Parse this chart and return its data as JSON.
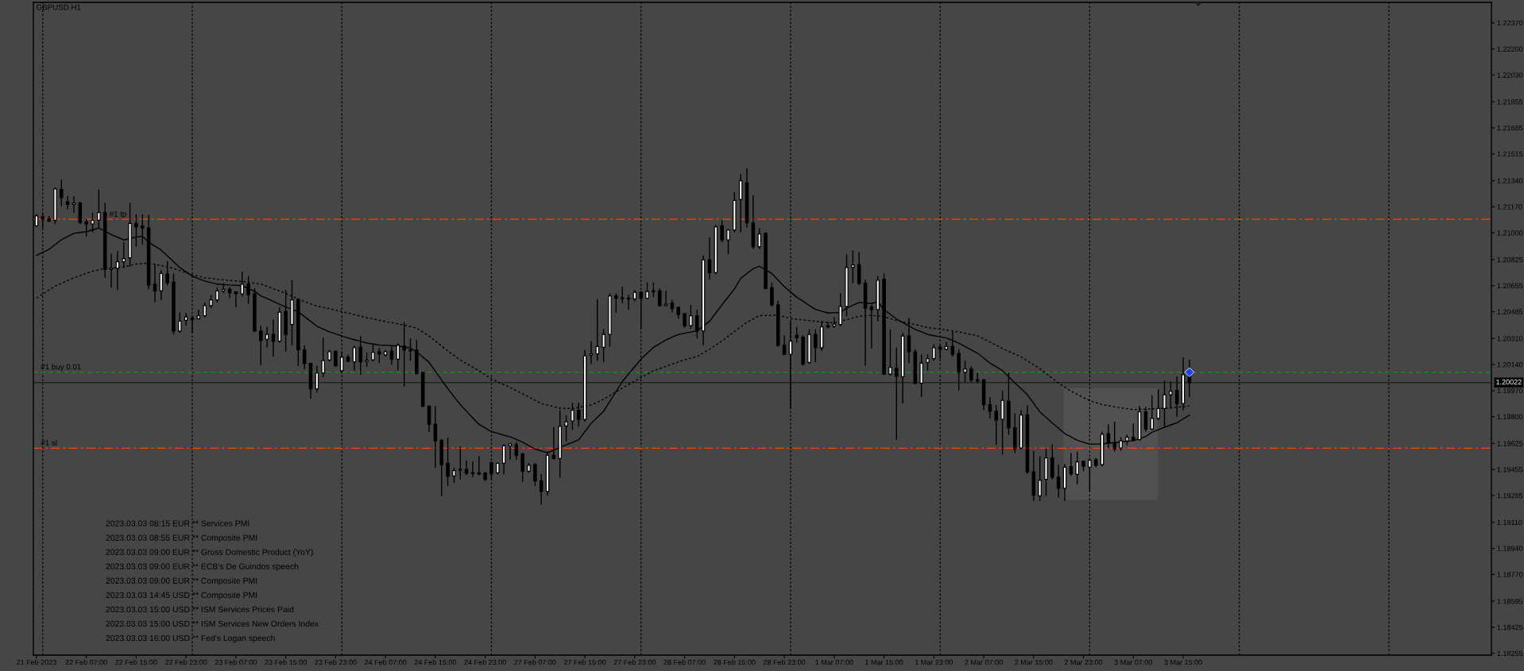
{
  "chart_data": {
    "type": "candlestick",
    "title": "GBPUSD.H1",
    "categories": [
      "21 Feb 2023",
      null,
      null,
      null,
      null,
      null,
      null,
      null,
      "22 Feb 07:00",
      null,
      null,
      null,
      null,
      null,
      null,
      null,
      "22 Feb 15:00",
      null,
      null,
      null,
      null,
      null,
      null,
      null,
      "22 Feb 23:00",
      null,
      null,
      null,
      null,
      null,
      null,
      null,
      "23 Feb 07:00",
      null,
      null,
      null,
      null,
      null,
      null,
      null,
      "23 Feb 15:00",
      null,
      null,
      null,
      null,
      null,
      null,
      null,
      "23 Feb 23:00",
      null,
      null,
      null,
      null,
      null,
      null,
      null,
      "24 Feb 07:00",
      null,
      null,
      null,
      null,
      null,
      null,
      null,
      "24 Feb 15:00",
      null,
      null,
      null,
      null,
      null,
      null,
      null,
      "24 Feb 23:00",
      null,
      null,
      null,
      null,
      null,
      null,
      null,
      "27 Feb 07:00",
      null,
      null,
      null,
      null,
      null,
      null,
      null,
      "27 Feb 15:00",
      null,
      null,
      null,
      null,
      null,
      null,
      null,
      "27 Feb 23:00",
      null,
      null,
      null,
      null,
      null,
      null,
      null,
      "28 Feb 07:00",
      null,
      null,
      null,
      null,
      null,
      null,
      null,
      "28 Feb 15:00",
      null,
      null,
      null,
      null,
      null,
      null,
      null,
      "28 Feb 23:00",
      null,
      null,
      null,
      null,
      null,
      null,
      null,
      "1 Mar 07:00",
      null,
      null,
      null,
      null,
      null,
      null,
      null,
      "1 Mar 15:00",
      null,
      null,
      null,
      null,
      null,
      null,
      null,
      "1 Mar 23:00",
      null,
      null,
      null,
      null,
      null,
      null,
      null,
      "2 Mar 07:00",
      null,
      null,
      null,
      null,
      null,
      null,
      null,
      "2 Mar 15:00",
      null,
      null,
      null,
      null,
      null,
      null,
      null,
      "2 Mar 23:00",
      null,
      null,
      null,
      null,
      null,
      null,
      null,
      "3 Mar 07:00",
      null,
      null,
      null,
      null,
      null,
      null,
      null,
      "3 Mar 15:00",
      null
    ],
    "ohlc": [
      [
        1.21046,
        1.21121,
        1.21039,
        1.2111
      ],
      [
        1.21104,
        1.21132,
        1.21031,
        1.21089
      ],
      [
        1.21089,
        1.2111,
        1.21067,
        1.21078
      ],
      [
        1.21082,
        1.21297,
        1.21057,
        1.21287
      ],
      [
        1.21282,
        1.21347,
        1.21175,
        1.21229
      ],
      [
        1.21201,
        1.21239,
        1.21153,
        1.21186
      ],
      [
        1.21186,
        1.21239,
        1.21132,
        1.21194
      ],
      [
        1.21194,
        1.21201,
        1.21057,
        1.21067
      ],
      [
        1.21072,
        1.21089,
        1.20975,
        1.21057
      ],
      [
        1.21057,
        1.21132,
        1.21003,
        1.21082
      ],
      [
        1.21082,
        1.21282,
        1.21024,
        1.21132
      ],
      [
        1.21132,
        1.21196,
        1.20706,
        1.20762
      ],
      [
        1.2076,
        1.20863,
        1.20642,
        1.20768
      ],
      [
        1.20768,
        1.2088,
        1.20627,
        1.20811
      ],
      [
        1.20811,
        1.20938,
        1.20771,
        1.20831
      ],
      [
        1.20837,
        1.21196,
        1.20777,
        1.21061
      ],
      [
        1.21061,
        1.21121,
        1.2091,
        1.21039
      ],
      [
        1.21044,
        1.21121,
        1.20923,
        1.21031
      ],
      [
        1.21031,
        1.21117,
        1.20631,
        1.20659
      ],
      [
        1.20665,
        1.20794,
        1.20547,
        1.2062
      ],
      [
        1.20622,
        1.20756,
        1.20562,
        1.20734
      ],
      [
        1.2073,
        1.20816,
        1.20657,
        1.20674
      ],
      [
        1.20678,
        1.20734,
        1.20336,
        1.20358
      ],
      [
        1.20358,
        1.2048,
        1.20347,
        1.20424
      ],
      [
        1.20429,
        1.20476,
        1.20394,
        1.2045
      ],
      [
        1.20442,
        1.20455,
        1.20347,
        1.20435
      ],
      [
        1.2044,
        1.20498,
        1.20433,
        1.20459
      ],
      [
        1.20459,
        1.20545,
        1.20448,
        1.20525
      ],
      [
        1.20525,
        1.20594,
        1.20508,
        1.20562
      ],
      [
        1.20562,
        1.20644,
        1.20545,
        1.2062
      ],
      [
        1.2062,
        1.2067,
        1.20605,
        1.20631
      ],
      [
        1.20631,
        1.20644,
        1.20573,
        1.20609
      ],
      [
        1.20614,
        1.20616,
        1.20515,
        1.20603
      ],
      [
        1.20601,
        1.20745,
        1.20584,
        1.20665
      ],
      [
        1.20665,
        1.20717,
        1.20536,
        1.20596
      ],
      [
        1.20601,
        1.20637,
        1.20353,
        1.20358
      ],
      [
        1.20358,
        1.20394,
        1.20136,
        1.20298
      ],
      [
        1.20304,
        1.20386,
        1.2025,
        1.20336
      ],
      [
        1.20336,
        1.20433,
        1.20192,
        1.20291
      ],
      [
        1.20293,
        1.20515,
        1.20283,
        1.20482
      ],
      [
        1.20487,
        1.20627,
        1.20224,
        1.20336
      ],
      [
        1.20401,
        1.20691,
        1.20265,
        1.20562
      ],
      [
        1.20566,
        1.20571,
        1.20132,
        1.20235
      ],
      [
        1.20235,
        1.20265,
        1.20111,
        1.20147
      ],
      [
        1.20147,
        1.20149,
        1.19917,
        1.19982
      ],
      [
        1.19982,
        1.20132,
        1.19956,
        1.20085
      ],
      [
        1.20085,
        1.20315,
        1.20057,
        1.20166
      ],
      [
        1.20169,
        1.20235,
        1.2016,
        1.20224
      ],
      [
        1.20227,
        1.20231,
        1.20126,
        1.20132
      ],
      [
        1.201,
        1.20222,
        1.20085,
        1.20188
      ],
      [
        1.20188,
        1.20205,
        1.20154,
        1.20162
      ],
      [
        1.20158,
        1.20265,
        1.201,
        1.2025
      ],
      [
        1.20252,
        1.20326,
        1.20072,
        1.20158
      ],
      [
        1.2016,
        1.20218,
        1.20126,
        1.20169
      ],
      [
        1.20171,
        1.20272,
        1.2016,
        1.2022
      ],
      [
        1.20222,
        1.20248,
        1.20149,
        1.20209
      ],
      [
        1.20203,
        1.20235,
        1.20192,
        1.20224
      ],
      [
        1.20227,
        1.20257,
        1.20138,
        1.20175
      ],
      [
        1.20175,
        1.20278,
        1.201,
        1.20265
      ],
      [
        1.20261,
        1.20418,
        1.19997,
        1.20235
      ],
      [
        1.20229,
        1.2031,
        1.20164,
        1.20235
      ],
      [
        1.20233,
        1.203,
        1.20072,
        1.20083
      ],
      [
        1.20089,
        1.20093,
        1.19863,
        1.19868
      ],
      [
        1.19868,
        1.19874,
        1.19698,
        1.19749
      ],
      [
        1.19749,
        1.1987,
        1.19466,
        1.19642
      ],
      [
        1.19646,
        1.1965,
        1.19281,
        1.19487
      ],
      [
        1.19496,
        1.19663,
        1.19347,
        1.1941
      ],
      [
        1.19412,
        1.19466,
        1.19367,
        1.19448
      ],
      [
        1.19455,
        1.19605,
        1.1939,
        1.1945
      ],
      [
        1.19455,
        1.19513,
        1.19418,
        1.19431
      ],
      [
        1.19433,
        1.19508,
        1.19405,
        1.19429
      ],
      [
        1.19431,
        1.19541,
        1.19418,
        1.19425
      ],
      [
        1.19431,
        1.1944,
        1.1938,
        1.1939
      ],
      [
        1.195,
        1.19508,
        1.1939,
        1.19427
      ],
      [
        1.19433,
        1.19496,
        1.19423,
        1.19496
      ],
      [
        1.19496,
        1.1962,
        1.19423,
        1.1961
      ],
      [
        1.1961,
        1.19625,
        1.19519,
        1.19622
      ],
      [
        1.19616,
        1.19633,
        1.19519,
        1.19547
      ],
      [
        1.19556,
        1.19562,
        1.19373,
        1.19444
      ],
      [
        1.19444,
        1.19498,
        1.19433,
        1.19483
      ],
      [
        1.19487,
        1.19498,
        1.19347,
        1.1938
      ],
      [
        1.1938,
        1.19423,
        1.19225,
        1.19311
      ],
      [
        1.19311,
        1.19573,
        1.19283,
        1.19547
      ],
      [
        1.19547,
        1.19732,
        1.19519,
        1.19526
      ],
      [
        1.19526,
        1.19842,
        1.19401,
        1.19736
      ],
      [
        1.19739,
        1.1981,
        1.19638,
        1.19767
      ],
      [
        1.19771,
        1.19891,
        1.19713,
        1.19842
      ],
      [
        1.19842,
        1.19891,
        1.19734,
        1.19782
      ],
      [
        1.19782,
        1.20235,
        1.19767,
        1.20197
      ],
      [
        1.20201,
        1.20291,
        1.20143,
        1.20209
      ],
      [
        1.20209,
        1.20566,
        1.20164,
        1.20257
      ],
      [
        1.20252,
        1.20373,
        1.20154,
        1.20336
      ],
      [
        1.20336,
        1.20605,
        1.20257,
        1.20588
      ],
      [
        1.20588,
        1.20605,
        1.20476,
        1.20573
      ],
      [
        1.20575,
        1.20648,
        1.20541,
        1.20571
      ],
      [
        1.20573,
        1.20594,
        1.20498,
        1.20568
      ],
      [
        1.20568,
        1.20627,
        1.20551,
        1.20611
      ],
      [
        1.20611,
        1.20616,
        1.20379,
        1.20573
      ],
      [
        1.20573,
        1.20676,
        1.20568,
        1.20616
      ],
      [
        1.2062,
        1.20676,
        1.20579,
        1.20616
      ],
      [
        1.2062,
        1.20637,
        1.20519,
        1.20525
      ],
      [
        1.20525,
        1.20622,
        1.20523,
        1.20534
      ],
      [
        1.20541,
        1.20562,
        1.2048,
        1.20508
      ],
      [
        1.20513,
        1.20519,
        1.2044,
        1.20467
      ],
      [
        1.20472,
        1.20476,
        1.20379,
        1.20394
      ],
      [
        1.20394,
        1.2053,
        1.20373,
        1.20459
      ],
      [
        1.20459,
        1.20498,
        1.2031,
        1.20358
      ],
      [
        1.20358,
        1.20852,
        1.20265,
        1.20824
      ],
      [
        1.20824,
        1.20971,
        1.20695,
        1.2074
      ],
      [
        1.2074,
        1.2105,
        1.2073,
        1.21039
      ],
      [
        1.21046,
        1.21082,
        1.20938,
        1.20953
      ],
      [
        1.20953,
        1.21024,
        1.20859,
        1.21018
      ],
      [
        1.21018,
        1.21267,
        1.21003,
        1.21211
      ],
      [
        1.21218,
        1.21383,
        1.21003,
        1.2134
      ],
      [
        1.21325,
        1.21422,
        1.21035,
        1.21065
      ],
      [
        1.21065,
        1.21246,
        1.20895,
        1.2091
      ],
      [
        1.2091,
        1.21031,
        1.20895,
        1.20992
      ],
      [
        1.20996,
        1.21003,
        1.20631,
        1.20637
      ],
      [
        1.20642,
        1.20674,
        1.20519,
        1.2053
      ],
      [
        1.2053,
        1.20556,
        1.20257,
        1.20265
      ],
      [
        1.20265,
        1.2033,
        1.20201,
        1.20207
      ],
      [
        1.20207,
        1.20422,
        1.19853,
        1.20293
      ],
      [
        1.2033,
        1.20386,
        1.20283,
        1.20315
      ],
      [
        1.20319,
        1.2033,
        1.20132,
        1.20143
      ],
      [
        1.20154,
        1.20369,
        1.20143,
        1.20336
      ],
      [
        1.20336,
        1.20369,
        1.20154,
        1.2025
      ],
      [
        1.2025,
        1.20422,
        1.20229,
        1.20386
      ],
      [
        1.20386,
        1.20418,
        1.20375,
        1.20392
      ],
      [
        1.2039,
        1.2045,
        1.20379,
        1.20403
      ],
      [
        1.20401,
        1.20605,
        1.2039,
        1.20519
      ],
      [
        1.20519,
        1.20859,
        1.20455,
        1.20773
      ],
      [
        1.20775,
        1.20885,
        1.2067,
        1.2079
      ],
      [
        1.20792,
        1.20874,
        1.20659,
        1.2067
      ],
      [
        1.2067,
        1.20695,
        1.20132,
        1.20508
      ],
      [
        1.20515,
        1.2053,
        1.20244,
        1.20498
      ],
      [
        1.20498,
        1.20717,
        1.20422,
        1.20691
      ],
      [
        1.20697,
        1.20734,
        1.20072,
        1.20078
      ],
      [
        1.20078,
        1.20369,
        1.20068,
        1.20121
      ],
      [
        1.20115,
        1.2025,
        1.19648,
        1.20063
      ],
      [
        1.20061,
        1.20347,
        1.19885,
        1.20326
      ],
      [
        1.20326,
        1.20444,
        1.20149,
        1.20224
      ],
      [
        1.20222,
        1.2024,
        1.20009,
        1.20018
      ],
      [
        1.20018,
        1.20207,
        1.19928,
        1.20149
      ],
      [
        1.20154,
        1.20207,
        1.201,
        1.20179
      ],
      [
        1.20179,
        1.20272,
        1.20164,
        1.2025
      ],
      [
        1.20253,
        1.20265,
        1.20175,
        1.2024
      ],
      [
        1.2024,
        1.20287,
        1.20235,
        1.20257
      ],
      [
        1.20257,
        1.20362,
        1.20192,
        1.20207
      ],
      [
        1.20212,
        1.2024,
        1.19971,
        1.20089
      ],
      [
        1.20089,
        1.20164,
        1.20025,
        1.20111
      ],
      [
        1.20111,
        1.20128,
        1.20025,
        1.2004
      ],
      [
        1.2004,
        1.20089,
        1.20018,
        1.20033
      ],
      [
        1.2004,
        1.20046,
        1.19842,
        1.19878
      ],
      [
        1.19878,
        1.19928,
        1.19788,
        1.19835
      ],
      [
        1.19835,
        1.19874,
        1.19616,
        1.19777
      ],
      [
        1.19782,
        1.19971,
        1.19552,
        1.19906
      ],
      [
        1.199,
        1.20089,
        1.19681,
        1.19728
      ],
      [
        1.19728,
        1.1982,
        1.19562,
        1.1959
      ],
      [
        1.19595,
        1.19842,
        1.19584,
        1.1981
      ],
      [
        1.1981,
        1.19874,
        1.19427,
        1.1944
      ],
      [
        1.1944,
        1.19577,
        1.1925,
        1.19287
      ],
      [
        1.19283,
        1.19541,
        1.1925,
        1.19384
      ],
      [
        1.1939,
        1.19595,
        1.19283,
        1.1953
      ],
      [
        1.1953,
        1.1962,
        1.1939,
        1.19405
      ],
      [
        1.19405,
        1.19487,
        1.19272,
        1.19332
      ],
      [
        1.19332,
        1.19491,
        1.1925,
        1.1947
      ],
      [
        1.19474,
        1.19562,
        1.19412,
        1.19427
      ],
      [
        1.19423,
        1.19573,
        1.19358,
        1.19504
      ],
      [
        1.19508,
        1.19513,
        1.19444,
        1.19476
      ],
      [
        1.1947,
        1.1953,
        1.19315,
        1.19515
      ],
      [
        1.19517,
        1.1953,
        1.1947,
        1.19483
      ],
      [
        1.19487,
        1.19702,
        1.19476,
        1.19685
      ],
      [
        1.19689,
        1.19749,
        1.19595,
        1.19625
      ],
      [
        1.19625,
        1.19767,
        1.19573,
        1.1959
      ],
      [
        1.19595,
        1.19665,
        1.19577,
        1.19642
      ],
      [
        1.19642,
        1.19681,
        1.19612,
        1.19665
      ],
      [
        1.19665,
        1.19756,
        1.19642,
        1.19646
      ],
      [
        1.1965,
        1.1987,
        1.19646,
        1.19831
      ],
      [
        1.19831,
        1.19863,
        1.19702,
        1.19719
      ],
      [
        1.19719,
        1.19939,
        1.19713,
        1.19788
      ],
      [
        1.19788,
        1.19977,
        1.19777,
        1.19853
      ],
      [
        1.19853,
        1.20035,
        1.19734,
        1.19943
      ],
      [
        1.19943,
        1.20029,
        1.19853,
        1.19966
      ],
      [
        1.19971,
        1.20063,
        1.19799,
        1.19885
      ],
      [
        1.19885,
        1.20186,
        1.19842,
        1.20074
      ],
      [
        1.20078,
        1.20171,
        1.19928,
        1.20022
      ]
    ],
    "color": "#000000",
    "colors": [
      "#ffffff",
      "#000000",
      "#000000",
      "#ffffff",
      "#000000",
      "#000000",
      "#ffffff",
      "#000000",
      "#000000",
      "#ffffff",
      "#ffffff",
      "#000000",
      "#ffffff",
      "#ffffff",
      "#ffffff",
      "#ffffff",
      "#000000",
      "#000000",
      "#000000",
      "#000000",
      "#ffffff",
      "#000000",
      "#000000",
      "#ffffff",
      "#ffffff",
      "#000000",
      "#ffffff",
      "#ffffff",
      "#ffffff",
      "#ffffff",
      "#ffffff",
      "#000000",
      "#000000",
      "#ffffff",
      "#000000",
      "#000000",
      "#000000",
      "#ffffff",
      "#000000",
      "#ffffff",
      "#000000",
      "#ffffff",
      "#000000",
      "#000000",
      "#000000",
      "#ffffff",
      "#ffffff",
      "#ffffff",
      "#000000",
      "#ffffff",
      "#000000",
      "#ffffff",
      "#000000",
      "#ffffff",
      "#ffffff",
      "#000000",
      "#ffffff",
      "#000000",
      "#ffffff",
      "#000000",
      "#ffffff",
      "#000000",
      "#000000",
      "#000000",
      "#000000",
      "#000000",
      "#000000",
      "#ffffff",
      "#000000",
      "#000000",
      "#000000",
      "#000000",
      "#000000",
      "#000000",
      "#ffffff",
      "#ffffff",
      "#ffffff",
      "#000000",
      "#000000",
      "#ffffff",
      "#000000",
      "#000000",
      "#ffffff",
      "#000000",
      "#ffffff",
      "#ffffff",
      "#ffffff",
      "#000000",
      "#ffffff",
      "#ffffff",
      "#ffffff",
      "#ffffff",
      "#ffffff",
      "#000000",
      "#000000",
      "#000000",
      "#ffffff",
      "#000000",
      "#ffffff",
      "#000000",
      "#000000",
      "#ffffff",
      "#000000",
      "#000000",
      "#000000",
      "#ffffff",
      "#000000",
      "#ffffff",
      "#000000",
      "#ffffff",
      "#000000",
      "#ffffff",
      "#ffffff",
      "#ffffff",
      "#000000",
      "#000000",
      "#ffffff",
      "#000000",
      "#000000",
      "#000000",
      "#000000",
      "#ffffff",
      "#000000",
      "#000000",
      "#ffffff",
      "#000000",
      "#ffffff",
      "#ffffff",
      "#ffffff",
      "#ffffff",
      "#ffffff",
      "#ffffff",
      "#000000",
      "#000000",
      "#000000",
      "#ffffff",
      "#000000",
      "#ffffff",
      "#000000",
      "#ffffff",
      "#000000",
      "#000000",
      "#ffffff",
      "#ffffff",
      "#ffffff",
      "#000000",
      "#ffffff",
      "#000000",
      "#000000",
      "#ffffff",
      "#000000",
      "#000000",
      "#000000",
      "#000000",
      "#000000",
      "#ffffff",
      "#000000",
      "#000000",
      "#ffffff",
      "#000000",
      "#000000",
      "#ffffff",
      "#ffffff",
      "#000000",
      "#000000",
      "#ffffff",
      "#000000",
      "#ffffff",
      "#000000",
      "#ffffff",
      "#000000",
      "#ffffff",
      "#000000",
      "#000000",
      "#ffffff",
      "#ffffff",
      "#000000",
      "#ffffff",
      "#000000",
      "#ffffff",
      "#ffffff",
      "#ffffff",
      "#ffffff",
      "#000000",
      "#ffffff",
      "#000000"
    ],
    "series": [
      {
        "type": "line",
        "color": "#000000",
        "line_style": "solid",
        "values": [
          1.20852,
          1.20872,
          1.20891,
          1.20923,
          1.20955,
          1.20976,
          1.20996,
          1.21002,
          1.21007,
          1.21019,
          1.21031,
          1.2101,
          1.20988,
          1.20971,
          1.20953,
          1.20963,
          1.20973,
          1.20977,
          1.20938,
          1.20913,
          1.20887,
          1.20849,
          1.20811,
          1.20773,
          1.20745,
          1.20717,
          1.20701,
          1.20685,
          1.20675,
          1.20665,
          1.20662,
          1.20659,
          1.20657,
          1.20654,
          1.20636,
          1.20618,
          1.20588,
          1.20571,
          1.20552,
          1.20534,
          1.20515,
          1.205,
          1.20485,
          1.20453,
          1.20422,
          1.2039,
          1.20372,
          1.20353,
          1.2034,
          1.20326,
          1.20313,
          1.20302,
          1.20291,
          1.2028,
          1.20274,
          1.20267,
          1.20265,
          1.20263,
          1.20261,
          1.20255,
          1.20248,
          1.20222,
          1.20188,
          1.20154,
          1.20097,
          1.20039,
          1.19982,
          1.1993,
          1.19878,
          1.19835,
          1.19792,
          1.19749,
          1.19726,
          1.19702,
          1.19691,
          1.19679,
          1.19668,
          1.19651,
          1.19633,
          1.19611,
          1.19588,
          1.19576,
          1.19564,
          1.19581,
          1.19599,
          1.19616,
          1.19632,
          1.19648,
          1.19702,
          1.19756,
          1.19796,
          1.19835,
          1.199,
          1.19964,
          1.20029,
          1.20078,
          1.20126,
          1.20175,
          1.20214,
          1.20252,
          1.20276,
          1.203,
          1.20318,
          1.20336,
          1.20344,
          1.20352,
          1.2036,
          1.20391,
          1.20422,
          1.20476,
          1.2053,
          1.20582,
          1.20633,
          1.20702,
          1.20734,
          1.20766,
          1.20781,
          1.20758,
          1.20734,
          1.20691,
          1.20648,
          1.20614,
          1.20579,
          1.20553,
          1.20526,
          1.205,
          1.20488,
          1.20476,
          1.20478,
          1.2048,
          1.20508,
          1.20527,
          1.20545,
          1.20542,
          1.20538,
          1.20551,
          1.20498,
          1.20468,
          1.20437,
          1.20414,
          1.20392,
          1.20369,
          1.20353,
          1.20336,
          1.20328,
          1.20321,
          1.20313,
          1.20297,
          1.2028,
          1.20258,
          1.20236,
          1.20214,
          1.20182,
          1.20149,
          1.20125,
          1.201,
          1.2006,
          1.2002,
          1.19982,
          1.19943,
          1.19887,
          1.19831,
          1.19795,
          1.19758,
          1.19724,
          1.19689,
          1.19668,
          1.19646,
          1.19633,
          1.1962,
          1.19621,
          1.19622,
          1.19627,
          1.19631,
          1.19635,
          1.19638,
          1.19642,
          1.19656,
          1.1967,
          1.19698,
          1.19714,
          1.1973,
          1.19745,
          1.1976,
          1.19785,
          1.1981
        ]
      },
      {
        "type": "line",
        "color": "#000000",
        "line_style": "dotted",
        "values": [
          1.20573,
          1.20599,
          1.20626,
          1.20652,
          1.2067,
          1.20688,
          1.20706,
          1.2072,
          1.20735,
          1.20749,
          1.20758,
          1.20766,
          1.2077,
          1.20773,
          1.20777,
          1.20787,
          1.20796,
          1.20799,
          1.20801,
          1.20794,
          1.20786,
          1.20777,
          1.20768,
          1.20753,
          1.20738,
          1.20727,
          1.20717,
          1.20706,
          1.20702,
          1.20697,
          1.20693,
          1.20689,
          1.20686,
          1.20682,
          1.20676,
          1.20671,
          1.20665,
          1.2065,
          1.20635,
          1.2062,
          1.20605,
          1.20586,
          1.20566,
          1.20551,
          1.20536,
          1.20521,
          1.20513,
          1.20504,
          1.20495,
          1.20485,
          1.20476,
          1.20466,
          1.20456,
          1.20446,
          1.20438,
          1.20429,
          1.20421,
          1.20413,
          1.20405,
          1.20397,
          1.20388,
          1.20377,
          1.20352,
          1.20326,
          1.20294,
          1.20261,
          1.20229,
          1.20199,
          1.20169,
          1.20146,
          1.20123,
          1.201,
          1.20073,
          1.20046,
          1.20027,
          1.20009,
          1.1999,
          1.1997,
          1.19949,
          1.19928,
          1.19906,
          1.19885,
          1.19875,
          1.19865,
          1.19855,
          1.19854,
          1.19853,
          1.19861,
          1.19868,
          1.19876,
          1.19895,
          1.19913,
          1.19937,
          1.19962,
          1.19986,
          1.20009,
          1.20032,
          1.20055,
          1.20077,
          1.20098,
          1.20113,
          1.20128,
          1.20143,
          1.20157,
          1.20171,
          1.20182,
          1.20192,
          1.20216,
          1.2024,
          1.20267,
          1.20293,
          1.20325,
          1.20356,
          1.20386,
          1.20416,
          1.20438,
          1.20459,
          1.2046,
          1.20462,
          1.20463,
          1.20452,
          1.2044,
          1.20436,
          1.20431,
          1.20427,
          1.20422,
          1.20419,
          1.20415,
          1.20412,
          1.20423,
          1.20433,
          1.20444,
          1.20455,
          1.20458,
          1.20461,
          1.20457,
          1.20452,
          1.2044,
          1.20427,
          1.20418,
          1.2041,
          1.20401,
          1.20391,
          1.20381,
          1.20376,
          1.20371,
          1.20366,
          1.2036,
          1.20353,
          1.20345,
          1.20336,
          1.20328,
          1.20308,
          1.20287,
          1.20266,
          1.20244,
          1.20226,
          1.20208,
          1.2019,
          1.20164,
          1.20139,
          1.20113,
          1.20081,
          1.2005,
          1.20018,
          1.19992,
          1.19966,
          1.19945,
          1.19925,
          1.19904,
          1.19891,
          1.19878,
          1.19871,
          1.19864,
          1.19857,
          1.19852,
          1.19846,
          1.19847,
          1.19848,
          1.19851,
          1.19853,
          1.19855,
          1.19857,
          1.19861,
          1.19865,
          1.1987
        ]
      },
      {
        "type": "scatter",
        "color": "#2040ff",
        "marker": "diamond",
        "values": [
          null,
          null,
          null,
          null,
          null,
          null,
          null,
          null,
          null,
          null,
          null,
          null,
          null,
          null,
          null,
          null,
          null,
          null,
          null,
          null,
          null,
          null,
          null,
          null,
          null,
          null,
          null,
          null,
          null,
          null,
          null,
          null,
          null,
          null,
          null,
          null,
          null,
          null,
          null,
          null,
          null,
          null,
          null,
          null,
          null,
          null,
          null,
          null,
          null,
          null,
          null,
          null,
          null,
          null,
          null,
          null,
          null,
          null,
          null,
          null,
          null,
          null,
          null,
          null,
          null,
          null,
          null,
          null,
          null,
          null,
          null,
          null,
          null,
          null,
          null,
          null,
          null,
          null,
          null,
          null,
          null,
          null,
          null,
          null,
          null,
          null,
          null,
          null,
          null,
          null,
          null,
          null,
          null,
          null,
          null,
          null,
          null,
          null,
          null,
          null,
          null,
          null,
          null,
          null,
          null,
          null,
          null,
          null,
          null,
          null,
          null,
          null,
          null,
          null,
          null,
          null,
          null,
          null,
          null,
          null,
          null,
          null,
          null,
          null,
          null,
          null,
          null,
          null,
          null,
          null,
          null,
          null,
          null,
          null,
          null,
          null,
          null,
          null,
          null,
          null,
          null,
          null,
          null,
          null,
          null,
          null,
          null,
          null,
          null,
          null,
          null,
          null,
          null,
          null,
          null,
          null,
          null,
          null,
          null,
          null,
          null,
          null,
          null,
          null,
          null,
          null,
          null,
          null,
          null,
          null,
          null,
          null,
          null,
          null,
          null,
          null,
          null,
          null,
          null,
          null,
          null,
          null,
          null,
          null,
          null,
          1.2009
        ]
      }
    ],
    "ylim": [
      1.18243,
      1.22504
    ],
    "yticks": [
      {
        "value": 1.2237,
        "label": "1.22370"
      },
      {
        "value": 1.222,
        "label": "1.22200"
      },
      {
        "value": 1.2203,
        "label": "1.22030"
      },
      1.21855,
      1.21685,
      1.21515,
      {
        "value": 1.2134,
        "label": "1.21340"
      },
      {
        "value": 1.2117,
        "label": "1.21170"
      },
      {
        "value": 1.21,
        "label": "1.21000"
      },
      1.20825,
      1.20655,
      1.20485,
      {
        "value": 1.2031,
        "label": "1.20310"
      },
      {
        "value": 1.2014,
        "label": "1.20140"
      },
      {
        "value": 1.1997,
        "label": "1.19970"
      },
      {
        "value": 1.198,
        "label": "1.19800"
      },
      1.19625,
      1.19455,
      1.19285,
      {
        "value": 1.1911,
        "label": "1.19110"
      },
      {
        "value": 1.1894,
        "label": "1.18940"
      },
      {
        "value": 1.1877,
        "label": "1.18770"
      },
      1.18595,
      1.18425,
      1.18255
    ],
    "ref_lines": [
      {
        "axis": "y",
        "value": 1.21088,
        "label": "#1 tp",
        "color": "#ff4500",
        "line_style": "dashdot"
      },
      {
        "axis": "y",
        "value": 1.2009,
        "label": "#1 buy 0.01",
        "color": "#1a8c1a",
        "line_style": "dashed"
      },
      {
        "axis": "y",
        "value": 1.20022,
        "label": "1.20022",
        "color": "#222222",
        "line_style": "solid"
      },
      {
        "axis": "y",
        "value": 1.19594,
        "label": "#1 sl",
        "color": "#ff4500",
        "line_style": "dashdot"
      }
    ],
    "annotations": [
      "2023.03.03 08:15 EUR ** Services PMI",
      "2023.03.03 08:55 EUR ** Composite PMI",
      "2023.03.03 09:00 EUR ** Gross Domestic Product (YoY)",
      "2023.03.03 09:00 EUR ** ECB's De Guindos speech",
      "2023.03.03 09:00 EUR ** Composite PMI",
      "2023.03.03 14:45 USD ** Composite PMI",
      "2023.03.03 15:00 USD ** ISM Services Prices Paid",
      "2023.03.03 15:00 USD ** ISM Services New Orders Index",
      "2023.03.03 16:00 USD ** Fed's Logan speech"
    ]
  }
}
